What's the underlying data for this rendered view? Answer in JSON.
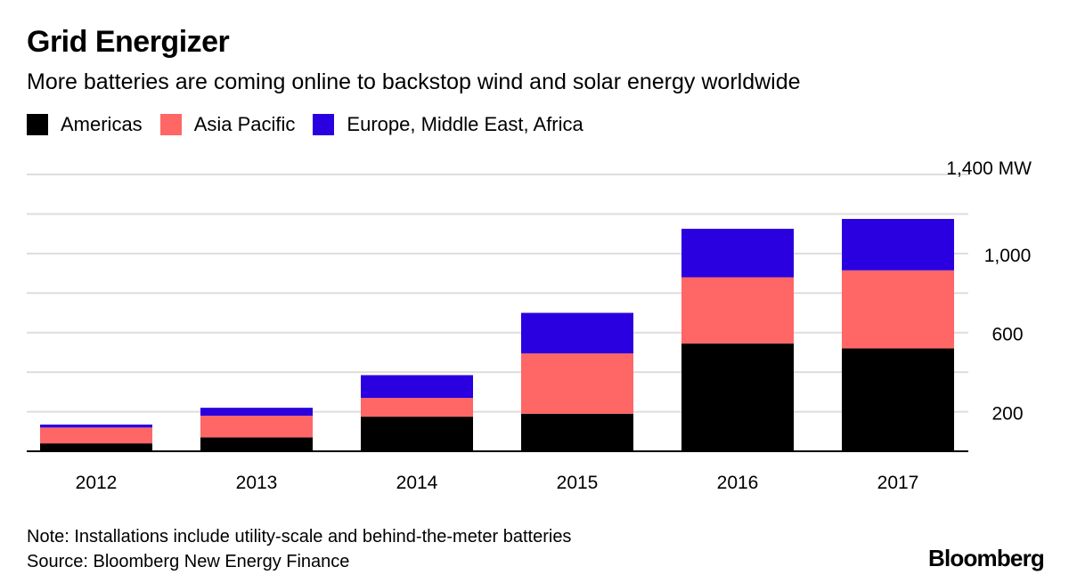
{
  "header": {
    "title": "Grid Energizer",
    "subtitle": "More batteries are coming online to backstop wind and solar energy worldwide"
  },
  "legend": [
    {
      "label": "Americas",
      "color": "#000000"
    },
    {
      "label": "Asia Pacific",
      "color": "#ff6666"
    },
    {
      "label": "Europe, Middle East, Africa",
      "color": "#2a00e0"
    }
  ],
  "chart_data": {
    "type": "bar",
    "stacked": true,
    "categories": [
      "2012",
      "2013",
      "2014",
      "2015",
      "2016",
      "2017"
    ],
    "series": [
      {
        "name": "Americas",
        "color": "#000000",
        "values": [
          40,
          70,
          175,
          190,
          545,
          520
        ]
      },
      {
        "name": "Asia Pacific",
        "color": "#ff6666",
        "values": [
          80,
          110,
          95,
          305,
          335,
          395
        ]
      },
      {
        "name": "Europe, Middle East, Africa",
        "color": "#2a00e0",
        "values": [
          15,
          40,
          115,
          205,
          245,
          260
        ]
      }
    ],
    "ylim": [
      0,
      1400
    ],
    "y_ticks": [
      200,
      600,
      1000,
      1400
    ],
    "y_tick_labels": [
      "200",
      "600",
      "1,000",
      "1,400 MW"
    ],
    "y_gridlines": [
      200,
      400,
      600,
      800,
      1000,
      1200,
      1400
    ],
    "grid": true,
    "y_axis_side": "right",
    "legend_position": "top-left"
  },
  "footer": {
    "note": "Note: Installations include utility-scale and behind-the-meter batteries",
    "source": "Source: Bloomberg New Energy Finance",
    "brand": "Bloomberg"
  }
}
